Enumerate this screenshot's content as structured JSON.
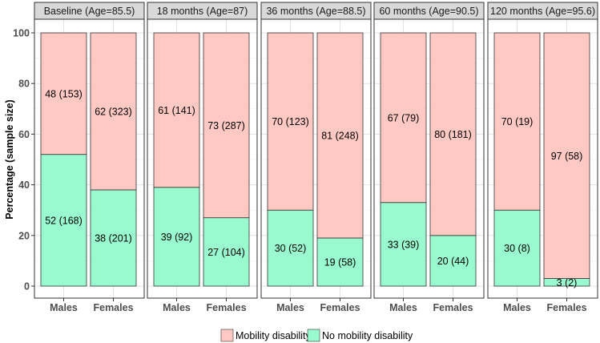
{
  "chart_data": {
    "type": "bar",
    "stacked": true,
    "ylabel": "Percentage (sample size)",
    "ylim": [
      0,
      100
    ],
    "yticks": [
      0,
      20,
      40,
      60,
      80,
      100
    ],
    "grid": true,
    "legend": {
      "placement": "bottom",
      "entries": [
        {
          "name": "Mobility disability",
          "color": "#ffc9c3"
        },
        {
          "name": "No mobility disability",
          "color": "#99f9cf"
        }
      ]
    },
    "panels": [
      {
        "title": "Baseline (Age=85.5)",
        "categories": [
          "Males",
          "Females"
        ],
        "series": [
          {
            "name": "No mobility disability",
            "values": [
              52,
              38
            ],
            "labels": [
              "52 (168)",
              "38 (201)"
            ]
          },
          {
            "name": "Mobility disability",
            "values": [
              48,
              62
            ],
            "labels": [
              "48 (153)",
              "62 (323)"
            ]
          }
        ]
      },
      {
        "title": "18 months (Age=87)",
        "categories": [
          "Males",
          "Females"
        ],
        "series": [
          {
            "name": "No mobility disability",
            "values": [
              39,
              27
            ],
            "labels": [
              "39 (92)",
              "27 (104)"
            ]
          },
          {
            "name": "Mobility disability",
            "values": [
              61,
              73
            ],
            "labels": [
              "61 (141)",
              "73 (287)"
            ]
          }
        ]
      },
      {
        "title": "36 months (Age=88.5)",
        "categories": [
          "Males",
          "Females"
        ],
        "series": [
          {
            "name": "No mobility disability",
            "values": [
              30,
              19
            ],
            "labels": [
              "30 (52)",
              "19 (58)"
            ]
          },
          {
            "name": "Mobility disability",
            "values": [
              70,
              81
            ],
            "labels": [
              "70 (123)",
              "81 (248)"
            ]
          }
        ]
      },
      {
        "title": "60 months (Age=90.5)",
        "categories": [
          "Males",
          "Females"
        ],
        "series": [
          {
            "name": "No mobility disability",
            "values": [
              33,
              20
            ],
            "labels": [
              "33 (39)",
              "20 (44)"
            ]
          },
          {
            "name": "Mobility disability",
            "values": [
              67,
              80
            ],
            "labels": [
              "67 (79)",
              "80 (181)"
            ]
          }
        ]
      },
      {
        "title": "120 months (Age=95.6)",
        "categories": [
          "Males",
          "Females"
        ],
        "series": [
          {
            "name": "No mobility disability",
            "values": [
              30,
              3
            ],
            "labels": [
              "30 (8)",
              "3 (2)"
            ]
          },
          {
            "name": "Mobility disability",
            "values": [
              70,
              97
            ],
            "labels": [
              "70 (19)",
              "97 (58)"
            ]
          }
        ]
      }
    ]
  }
}
